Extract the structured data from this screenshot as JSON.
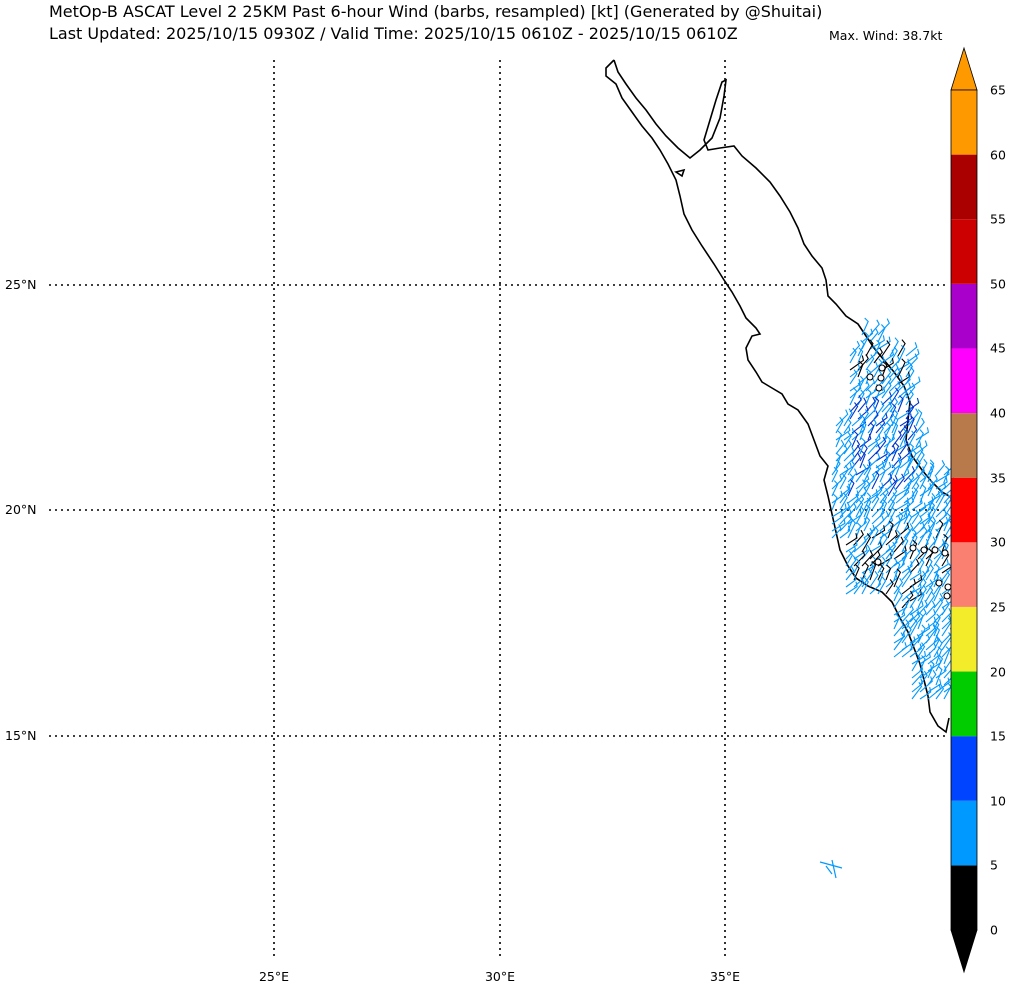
{
  "header": {
    "title_line1": "MetOp-B ASCAT Level 2 25KM Past 6-hour Wind (barbs, resampled) [kt] (Generated by @Shuitai)",
    "title_line2": "Last Updated: 2025/10/15 0930Z / Valid Time: 2025/10/15 0610Z - 2025/10/15 0610Z",
    "max_wind": "Max. Wind: 38.7kt"
  },
  "map": {
    "lat_labels": [
      "25°N",
      "20°N",
      "15°N"
    ],
    "lon_labels": [
      "25°E",
      "30°E",
      "35°E"
    ],
    "gridline_style": "dotted",
    "region": "Red Sea"
  },
  "colorbar": {
    "labels": [
      "0",
      "5",
      "10",
      "15",
      "20",
      "25",
      "30",
      "35",
      "40",
      "45",
      "50",
      "55",
      "60",
      "65"
    ],
    "colors": [
      "#000000",
      "#0099ff",
      "#0044ff",
      "#00cc00",
      "#f2ec2a",
      "#fa8072",
      "#ff0000",
      "#b87a4b",
      "#ff00ff",
      "#aa00cc",
      "#cc0000",
      "#aa0000",
      "#ff9900"
    ],
    "extend": "both"
  }
}
